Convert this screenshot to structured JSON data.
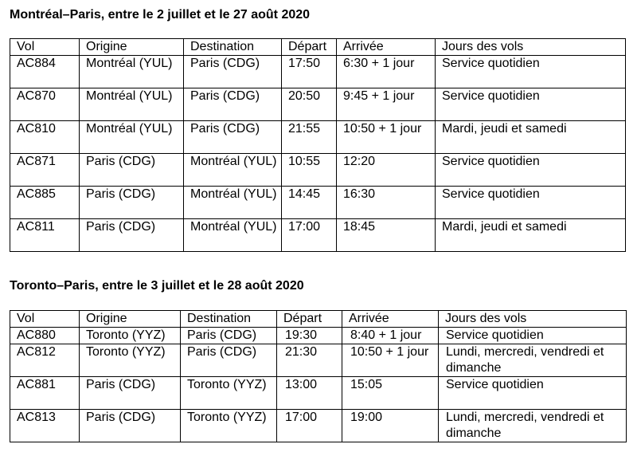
{
  "section1": {
    "title": "Montréal–Paris, entre le 2 juillet et le 27 août 2020",
    "headers": [
      "Vol",
      "Origine",
      "Destination",
      "Départ",
      "Arrivée",
      "Jours des vols"
    ],
    "rows": [
      [
        "AC884",
        "Montréal (YUL)",
        "Paris (CDG)",
        "17:50",
        "6:30 + 1 jour",
        "Service quotidien"
      ],
      [
        "AC870",
        "Montréal (YUL)",
        "Paris (CDG)",
        "20:50",
        "9:45 + 1 jour",
        "Service quotidien"
      ],
      [
        "AC810",
        "Montréal (YUL)",
        "Paris (CDG)",
        "21:55",
        "10:50 + 1 jour",
        "Mardi, jeudi et samedi"
      ],
      [
        "AC871",
        "Paris (CDG)",
        "Montréal (YUL)",
        "10:55",
        "12:20",
        "Service quotidien"
      ],
      [
        "AC885",
        "Paris (CDG)",
        "Montréal (YUL)",
        "14:45",
        "16:30",
        "Service quotidien"
      ],
      [
        "AC811",
        "Paris (CDG)",
        "Montréal (YUL)",
        "17:00",
        "18:45",
        "Mardi, jeudi et samedi"
      ]
    ]
  },
  "section2": {
    "title": "Toronto–Paris, entre le 3 juillet et le 28 août 2020",
    "headers": [
      "Vol",
      "Origine",
      "Destination",
      "Départ",
      "Arrivée",
      "Jours des vols"
    ],
    "rows": [
      [
        "AC880",
        "Toronto (YYZ)",
        "Paris (CDG)",
        "19:30",
        "8:40 + 1 jour",
        "Service quotidien"
      ],
      [
        "AC812",
        "Toronto (YYZ)",
        "Paris (CDG)",
        "21:30",
        "10:50 + 1 jour",
        "Lundi, mercredi, vendredi et dimanche"
      ],
      [
        "AC881",
        "Paris (CDG)",
        "Toronto (YYZ)",
        "13:00",
        "15:05",
        "Service quotidien"
      ],
      [
        "AC813",
        "Paris (CDG)",
        "Toronto (YYZ)",
        "17:00",
        "19:00",
        "Lundi, mercredi, vendredi et dimanche"
      ]
    ]
  }
}
